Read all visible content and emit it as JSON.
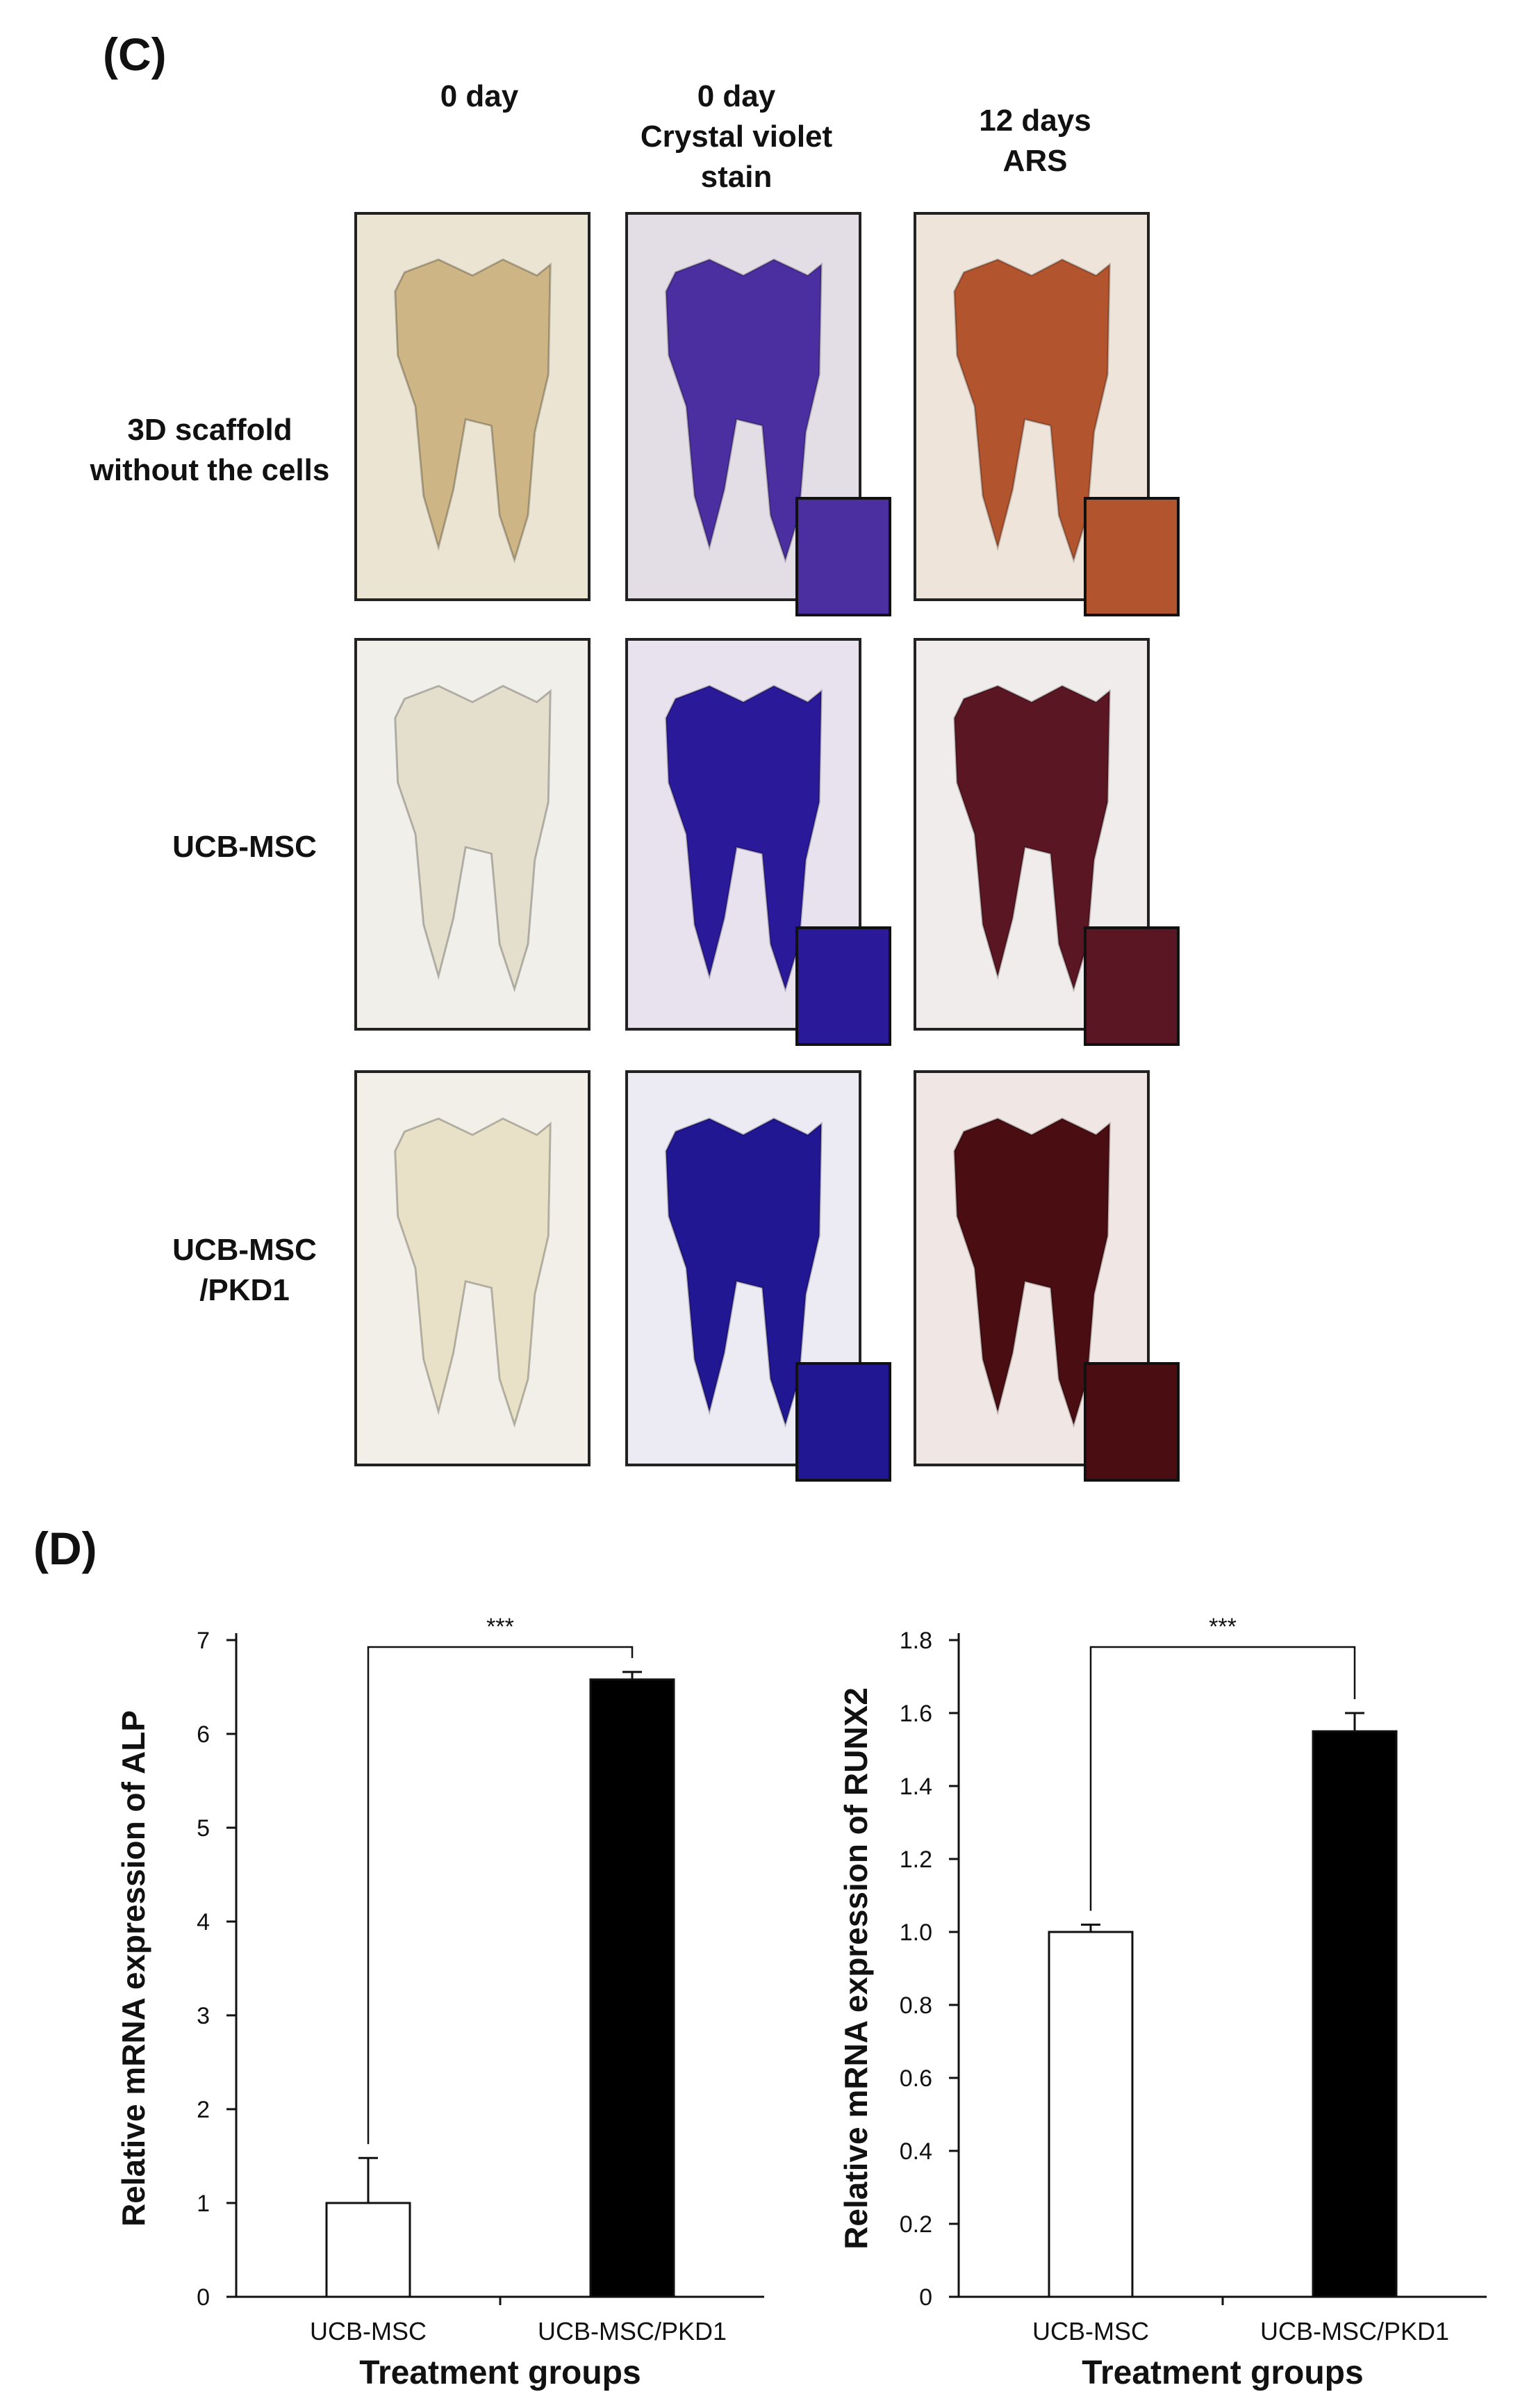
{
  "panel_c": {
    "letter": "(C)",
    "columns": [
      {
        "line1": "",
        "line2": "0 day",
        "line3": ""
      },
      {
        "line1": "0 day",
        "line2": "Crystal violet",
        "line3": "stain"
      },
      {
        "line1": "12 days",
        "line2": "ARS",
        "line3": ""
      }
    ],
    "rows": [
      {
        "line1": "3D scaffold",
        "line2": "without the cells"
      },
      {
        "line1": "UCB-MSC",
        "line2": ""
      },
      {
        "line1": "UCB-MSC",
        "line2": "/PKD1"
      }
    ],
    "tile_colors": [
      [
        "#cdb585",
        "#4b2fa0",
        "#b2552f"
      ],
      [
        "#e4decd",
        "#2a1a9a",
        "#5a1622"
      ],
      [
        "#e9e1c7",
        "#221792",
        "#4a0d12"
      ]
    ],
    "tile_backgrounds": [
      [
        "#ebe4d2",
        "#e3dde6",
        "#efe4da"
      ],
      [
        "#f0efea",
        "#e8e2ee",
        "#f1ecec"
      ],
      [
        "#f1efe8",
        "#eceaf2",
        "#f0e6e3"
      ]
    ]
  },
  "panel_d": {
    "letter": "(D)"
  },
  "chart_data": [
    {
      "type": "bar",
      "categories": [
        "UCB-MSC",
        "UCB-MSC/PKD1"
      ],
      "values": [
        1.0,
        6.58
      ],
      "errors": [
        0.48,
        0.08
      ],
      "bar_colors": [
        "#ffffff",
        "#000000"
      ],
      "xlabel": "Treatment groups",
      "ylabel": "Relative mRNA expression  of ALP",
      "ylim": [
        0,
        7
      ],
      "yticks": [
        "0",
        "1",
        "2",
        "3",
        "4",
        "5",
        "6",
        "7"
      ],
      "significance": "***",
      "grid": false
    },
    {
      "type": "bar",
      "categories": [
        "UCB-MSC",
        "UCB-MSC/PKD1"
      ],
      "values": [
        1.0,
        1.55
      ],
      "errors": [
        0.02,
        0.05
      ],
      "bar_colors": [
        "#ffffff",
        "#000000"
      ],
      "xlabel": "Treatment groups",
      "ylabel": "Relative mRNA expression  of RUNX2",
      "ylim": [
        0,
        1.8
      ],
      "yticks": [
        "0",
        "0.2",
        "0.4",
        "0.6",
        "0.8",
        "1.0",
        "1.2",
        "1.4",
        "1.6",
        "1.8"
      ],
      "significance": "***",
      "grid": false
    }
  ]
}
